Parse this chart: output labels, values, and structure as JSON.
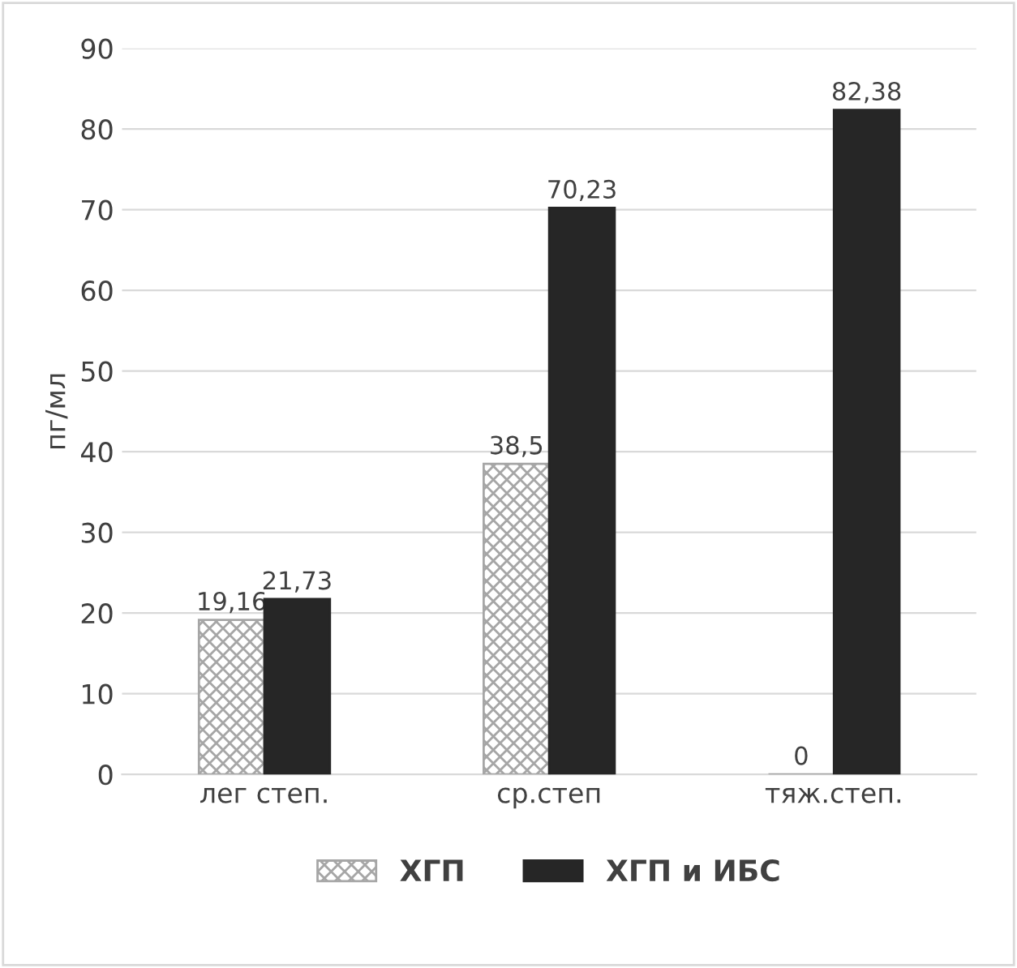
{
  "chart_data": {
    "type": "bar",
    "ylabel": "пг/мл",
    "categories": [
      "лег степ.",
      "ср.степ",
      "тяж.степ."
    ],
    "series": [
      {
        "name": "ХГП",
        "color": "#a6a6a6",
        "values": [
          19.16,
          38.5,
          0
        ],
        "value_labels": [
          "19,16",
          "38,5",
          "0"
        ]
      },
      {
        "name": "ХГП и ИБС",
        "color": "#262626",
        "values": [
          21.73,
          70.23,
          82.38
        ],
        "value_labels": [
          "21,73",
          "70,23",
          "82,38"
        ]
      }
    ],
    "ylim": [
      0,
      90
    ],
    "yticks": [
      0,
      10,
      20,
      30,
      40,
      50,
      60,
      70,
      80,
      90
    ],
    "grid": "y",
    "legend": "bottom"
  }
}
